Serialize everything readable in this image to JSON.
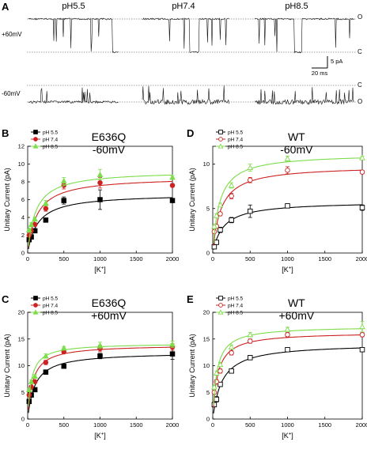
{
  "panel_a": {
    "letter": "A",
    "columns": [
      "pH5.5",
      "pH7.4",
      "pH8.5"
    ],
    "rows": [
      {
        "voltage": "+60mV",
        "level_top": "O",
        "level_bottom": "C"
      },
      {
        "voltage": "-60mV",
        "level_top": "C",
        "level_bottom": "O"
      }
    ],
    "scalebar": {
      "current": "5 pA",
      "time": "20 ms"
    }
  },
  "chart_data": [
    {
      "panel": "B",
      "type": "line",
      "title": "E636Q",
      "subtitle": "-60mV",
      "xlabel": "[K+]",
      "ylabel": "Unitary Current (pA)",
      "xlim": [
        0,
        2000
      ],
      "ylim": [
        0,
        12
      ],
      "xticks": [
        0,
        500,
        1000,
        1500,
        2000
      ],
      "yticks": [
        0,
        2,
        4,
        6,
        8,
        10,
        12
      ],
      "legend_position": "top-left",
      "marker": "filled",
      "series": [
        {
          "name": "pH 5.5",
          "color": "#000000",
          "x": [
            20,
            50,
            100,
            250,
            500,
            1000,
            2000
          ],
          "y": [
            1.5,
            1.8,
            2.5,
            3.7,
            5.9,
            6.0,
            5.9
          ],
          "err": [
            0.1,
            0.1,
            0.2,
            0.2,
            0.4,
            1.1,
            0.2
          ]
        },
        {
          "name": "pH 7.4",
          "color": "#cc2222",
          "x": [
            20,
            50,
            100,
            250,
            500,
            1000,
            2000
          ],
          "y": [
            2.0,
            2.5,
            3.2,
            5.0,
            7.6,
            7.9,
            7.6
          ],
          "err": [
            0.1,
            0.2,
            0.2,
            0.3,
            0.4,
            0.6,
            0.2
          ]
        },
        {
          "name": "pH 8.5",
          "color": "#7ddc4a",
          "x": [
            20,
            50,
            100,
            250,
            500,
            1000,
            2000
          ],
          "y": [
            2.6,
            3.2,
            3.8,
            5.6,
            8.1,
            8.8,
            8.5
          ],
          "err": [
            0.1,
            0.2,
            0.2,
            0.3,
            0.4,
            0.6,
            0.2
          ]
        }
      ]
    },
    {
      "panel": "D",
      "type": "line",
      "title": "WT",
      "subtitle": "-60mV",
      "xlabel": "[K+]",
      "ylabel": "Unitary Current (pA)",
      "xlim": [
        0,
        2000
      ],
      "ylim": [
        0,
        12
      ],
      "xticks": [
        0,
        500,
        1000,
        1500,
        2000
      ],
      "yticks": [
        0,
        5,
        10
      ],
      "legend_position": "top-left",
      "marker": "open",
      "series": [
        {
          "name": "pH 5.5",
          "color": "#000000",
          "x": [
            20,
            50,
            100,
            250,
            500,
            1000,
            2000
          ],
          "y": [
            0.7,
            1.2,
            2.6,
            3.7,
            4.7,
            5.3,
            5.1
          ],
          "err": [
            0.1,
            0.2,
            0.3,
            0.3,
            0.7,
            0.2,
            0.3
          ]
        },
        {
          "name": "pH 7.4",
          "color": "#cc2222",
          "x": [
            20,
            50,
            100,
            250,
            500,
            1000,
            2000
          ],
          "y": [
            2.4,
            3.0,
            4.4,
            6.4,
            8.2,
            9.3,
            9.1
          ],
          "err": [
            0.1,
            0.2,
            0.2,
            0.3,
            0.3,
            0.4,
            0.2
          ]
        },
        {
          "name": "pH 8.5",
          "color": "#7ddc4a",
          "x": [
            20,
            50,
            100,
            250,
            500,
            1000,
            2000
          ],
          "y": [
            3.0,
            4.2,
            5.4,
            7.6,
            9.6,
            10.6,
            10.7
          ],
          "err": [
            0.1,
            0.2,
            0.2,
            0.3,
            0.4,
            0.3,
            0.2
          ]
        }
      ]
    },
    {
      "panel": "C",
      "type": "line",
      "title": "E636Q",
      "subtitle": "+60mV",
      "xlabel": "[K+]",
      "ylabel": "Unitary Current (pA)",
      "xlim": [
        0,
        2000
      ],
      "ylim": [
        0,
        20
      ],
      "xticks": [
        0,
        500,
        1000,
        1500,
        2000
      ],
      "yticks": [
        0,
        5,
        10,
        15,
        20
      ],
      "legend_position": "top-left",
      "marker": "filled",
      "series": [
        {
          "name": "pH 5.5",
          "color": "#000000",
          "x": [
            20,
            50,
            100,
            250,
            500,
            1000,
            2000
          ],
          "y": [
            3.3,
            4.5,
            5.5,
            8.8,
            9.9,
            11.8,
            12.2
          ],
          "err": [
            0.2,
            0.3,
            0.3,
            0.4,
            0.3,
            0.5,
            1.0
          ]
        },
        {
          "name": "pH 7.4",
          "color": "#cc2222",
          "x": [
            20,
            50,
            100,
            250,
            500,
            1000,
            2000
          ],
          "y": [
            4.5,
            6.0,
            7.0,
            10.6,
            12.6,
            13.2,
            13.5
          ],
          "err": [
            0.2,
            0.3,
            0.3,
            0.4,
            0.3,
            0.6,
            0.6
          ]
        },
        {
          "name": "pH 8.5",
          "color": "#7ddc4a",
          "x": [
            20,
            50,
            100,
            250,
            500,
            1000,
            2000
          ],
          "y": [
            5.5,
            7.0,
            8.0,
            11.8,
            13.3,
            13.8,
            14.0
          ],
          "err": [
            0.2,
            0.3,
            0.3,
            0.4,
            0.3,
            0.6,
            0.6
          ]
        }
      ]
    },
    {
      "panel": "E",
      "type": "line",
      "title": "WT",
      "subtitle": "+60mV",
      "xlabel": "[K+]",
      "ylabel": "Unitary Current (pA)",
      "xlim": [
        0,
        2000
      ],
      "ylim": [
        0,
        20
      ],
      "xticks": [
        0,
        500,
        1000,
        1500,
        2000
      ],
      "yticks": [
        0,
        5,
        10,
        15,
        20
      ],
      "legend_position": "top-left",
      "marker": "open",
      "series": [
        {
          "name": "pH 5.5",
          "color": "#000000",
          "x": [
            20,
            50,
            100,
            250,
            500,
            1000,
            2000
          ],
          "y": [
            2.7,
            3.7,
            6.5,
            9.0,
            11.5,
            13.0,
            13.0
          ],
          "err": [
            0.2,
            0.5,
            0.4,
            0.4,
            0.4,
            0.3,
            0.3
          ]
        },
        {
          "name": "pH 7.4",
          "color": "#cc2222",
          "x": [
            20,
            50,
            100,
            250,
            500,
            1000,
            2000
          ],
          "y": [
            5.0,
            7.0,
            9.0,
            12.4,
            14.6,
            15.8,
            15.8
          ],
          "err": [
            0.2,
            0.4,
            0.4,
            0.4,
            0.4,
            0.4,
            0.4
          ]
        },
        {
          "name": "pH 8.5",
          "color": "#7ddc4a",
          "x": [
            20,
            50,
            100,
            250,
            500,
            1000,
            2000
          ],
          "y": [
            6.0,
            8.6,
            10.2,
            13.5,
            15.8,
            16.8,
            17.3
          ],
          "err": [
            0.2,
            0.4,
            0.4,
            0.4,
            0.4,
            0.4,
            1.0
          ]
        }
      ]
    }
  ]
}
